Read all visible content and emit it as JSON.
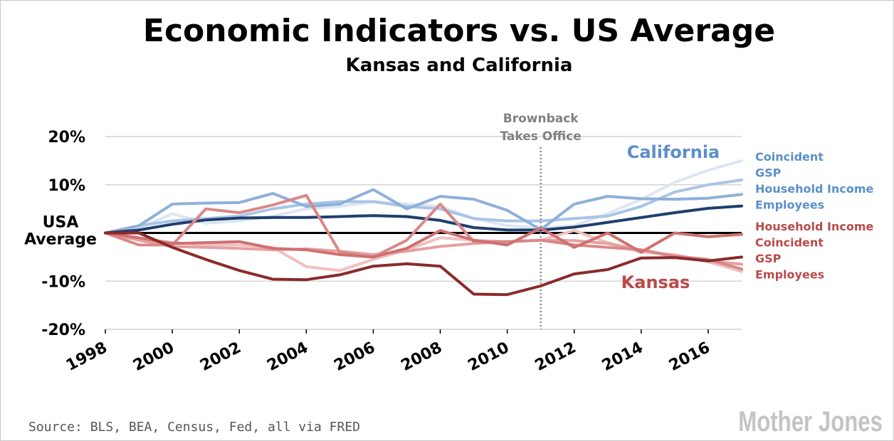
{
  "chart_data": {
    "type": "line",
    "title": "Economic Indicators vs. US Average",
    "subtitle": "Kansas and California",
    "xlabel": "",
    "ylabel": "",
    "x": [
      1998,
      1999,
      2000,
      2001,
      2002,
      2003,
      2004,
      2005,
      2006,
      2007,
      2008,
      2009,
      2010,
      2011,
      2012,
      2013,
      2014,
      2015,
      2016,
      2017
    ],
    "x_tick_labels": [
      "1998",
      "2000",
      "2002",
      "2004",
      "2006",
      "2008",
      "2010",
      "2012",
      "2014",
      "2016"
    ],
    "x_ticks": [
      1998,
      2000,
      2002,
      2004,
      2006,
      2008,
      2010,
      2012,
      2014,
      2016
    ],
    "xlim": [
      1998,
      2017
    ],
    "ylim": [
      -20,
      20
    ],
    "y_ticks": [
      -20,
      -10,
      0,
      10,
      20
    ],
    "y_tick_labels": [
      "-20%",
      "-10%",
      "USA\nAverage",
      "10%",
      "20%"
    ],
    "grid": "horizontal",
    "annotation": {
      "text": "Brownback Takes Office",
      "lines": [
        "Brownback",
        "Takes Office"
      ],
      "x": 2011
    },
    "group_labels": {
      "california": "California",
      "kansas": "Kansas"
    },
    "colors": {
      "california": "#5b8fc9",
      "kansas": "#b94a4a",
      "dark_blue": "#1f3f6e",
      "dark_red": "#8b2a2a"
    },
    "series": [
      {
        "name": "Coincident",
        "group": "california",
        "color": "#dce6f3",
        "values": [
          0,
          1,
          4,
          2,
          2.5,
          3.5,
          5,
          5.5,
          6.5,
          6,
          5.5,
          3,
          1.5,
          1,
          1.5,
          4,
          7,
          10.5,
          13,
          15
        ]
      },
      {
        "name": "GSP",
        "group": "california",
        "color": "#a9c4e6",
        "values": [
          0,
          1.5,
          2.5,
          3,
          3.5,
          5,
          6,
          6.5,
          6.5,
          5.5,
          5,
          3,
          2.5,
          2.5,
          3,
          3.5,
          5.5,
          8.5,
          10,
          11
        ]
      },
      {
        "name": "Household Income",
        "group": "california",
        "color": "#8fb0da",
        "values": [
          0,
          1.5,
          6,
          6.2,
          6.3,
          8.2,
          5.5,
          6,
          9,
          5,
          7.6,
          7,
          4.7,
          0.7,
          6,
          7.6,
          7.1,
          7,
          7.2,
          8
        ]
      },
      {
        "name": "Employees",
        "group": "california",
        "color": "#1f3f6e",
        "values": [
          0,
          0.6,
          1.8,
          2.7,
          3.1,
          3.2,
          3.2,
          3.4,
          3.6,
          3.4,
          2.6,
          1.1,
          0.6,
          0.6,
          1.2,
          2.2,
          3.2,
          4.2,
          5.1,
          5.6
        ]
      },
      {
        "name": "Household Income",
        "group": "kansas",
        "color": "#f0c0c0",
        "values": [
          0,
          -1,
          -2,
          -2.5,
          -2.5,
          -3,
          -7,
          -7.8,
          -5.5,
          -3.5,
          -1,
          -1.5,
          -1.8,
          -1.5,
          0.5,
          -2,
          -4,
          -4.5,
          -6,
          -8
        ]
      },
      {
        "name": "Coincident",
        "group": "kansas",
        "color": "#e6a0a0",
        "values": [
          0,
          -1.5,
          -2.8,
          -3,
          -3.2,
          -3.5,
          -3.3,
          -3.8,
          -4.5,
          -3.8,
          -2.8,
          -2.2,
          -1.8,
          -1.5,
          -1.6,
          -2.2,
          -3.5,
          -5,
          -5.8,
          -6.5
        ]
      },
      {
        "name": "GSP",
        "group": "kansas",
        "color": "#d98888",
        "values": [
          0,
          -2.5,
          -2.5,
          5,
          4.2,
          5.8,
          7.8,
          -4,
          -5,
          -1.5,
          6,
          -1.8,
          -1.8,
          -1.5,
          -2.5,
          -3,
          -3.5,
          -4.8,
          -5.5,
          -7.5
        ]
      },
      {
        "name": "Employees",
        "group": "kansas",
        "color": "#cf7070",
        "values": [
          0,
          -1,
          -2.2,
          -2,
          -1.8,
          -3.2,
          -3.5,
          -4.5,
          -5,
          -3.2,
          0.5,
          -1.5,
          -2.5,
          1,
          -3,
          0,
          -4,
          0,
          -0.8,
          -0.3
        ]
      },
      {
        "name": "",
        "group": "kansas",
        "color": "#8b2a2a",
        "values": [
          0,
          0,
          -3,
          -5.5,
          -7.8,
          -9.6,
          -9.7,
          -8.7,
          -6.9,
          -6.4,
          -6.9,
          -12.7,
          -12.8,
          -11,
          -8.5,
          -7.6,
          -5.2,
          -5.1,
          -5.8,
          -5
        ]
      }
    ],
    "legend": {
      "california": [
        "Coincident",
        "GSP",
        "Household Income",
        "Employees"
      ],
      "kansas": [
        "Household Income",
        "Coincident",
        "GSP",
        "Employees"
      ]
    }
  },
  "source": "Source: BLS, BEA, Census, Fed, all via FRED",
  "logo": "Mother Jones"
}
